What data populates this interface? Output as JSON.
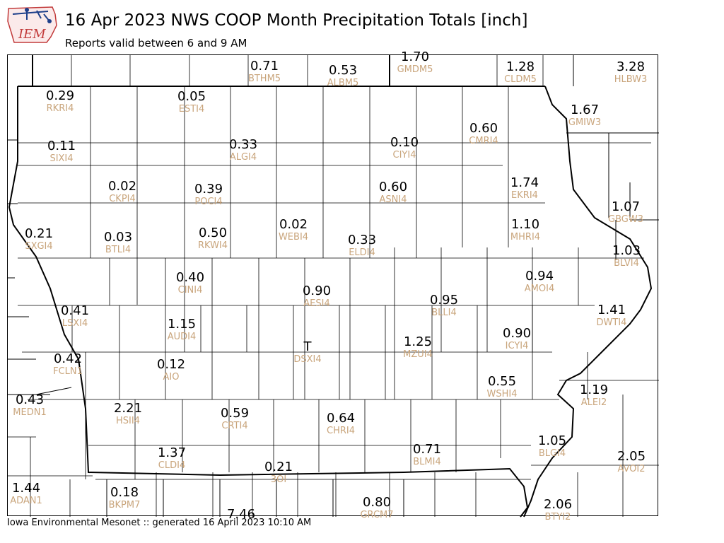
{
  "title": "16 Apr 2023 NWS COOP Month Precipitation Totals [inch]",
  "subtitle": "Reports valid between 6 and 9 AM",
  "footer": "Iowa Environmental Mesonet :: generated 16 April 2023 10:10 AM",
  "logo": {
    "text": "IEM",
    "accent": "#c23b3b",
    "outline": "#1e3f8a"
  },
  "colors": {
    "value": "#000000",
    "station_id": "#c9a57c",
    "border": "#000000"
  },
  "stations": [
    {
      "id": "BTHM5",
      "value": "0.71"
    },
    {
      "id": "ALBM5",
      "value": "0.53"
    },
    {
      "id": "GMDM5",
      "value": "1.70"
    },
    {
      "id": "CLDM5",
      "value": "1.28"
    },
    {
      "id": "HLBW3",
      "value": "3.28"
    },
    {
      "id": "RKRI4",
      "value": "0.29"
    },
    {
      "id": "ESTI4",
      "value": "0.05"
    },
    {
      "id": "GMIW3",
      "value": "1.67"
    },
    {
      "id": "SIXI4",
      "value": "0.11"
    },
    {
      "id": "ALGI4",
      "value": "0.33"
    },
    {
      "id": "CIYI4",
      "value": "0.10"
    },
    {
      "id": "CMRI4",
      "value": "0.60"
    },
    {
      "id": "CKPI4",
      "value": "0.02"
    },
    {
      "id": "POCI4",
      "value": "0.39"
    },
    {
      "id": "ASNI4",
      "value": "0.60"
    },
    {
      "id": "EKRI4",
      "value": "1.74"
    },
    {
      "id": "GBGW3",
      "value": "1.07"
    },
    {
      "id": "SXGI4",
      "value": "0.21"
    },
    {
      "id": "BTLI4",
      "value": "0.03"
    },
    {
      "id": "RKWI4",
      "value": "0.50"
    },
    {
      "id": "WEBI4",
      "value": "0.02"
    },
    {
      "id": "ELDI4",
      "value": "0.33"
    },
    {
      "id": "MHRI4",
      "value": "1.10"
    },
    {
      "id": "BLVI4",
      "value": "1.03"
    },
    {
      "id": "CINI4",
      "value": "0.40"
    },
    {
      "id": "AMOI4",
      "value": "0.94"
    },
    {
      "id": "AESI4",
      "value": "0.90"
    },
    {
      "id": "BLLI4",
      "value": "0.95"
    },
    {
      "id": "LSXI4",
      "value": "0.41"
    },
    {
      "id": "DWTI4",
      "value": "1.41"
    },
    {
      "id": "AUDI4",
      "value": "1.15"
    },
    {
      "id": "ICYI4",
      "value": "0.90"
    },
    {
      "id": "DSXI4",
      "value": "T"
    },
    {
      "id": "MZUI4",
      "value": "1.25"
    },
    {
      "id": "FCLN1",
      "value": "0.42"
    },
    {
      "id": "AIO",
      "value": "0.12"
    },
    {
      "id": "WSHI4",
      "value": "0.55"
    },
    {
      "id": "MEDN1",
      "value": "0.43"
    },
    {
      "id": "ALEI2",
      "value": "1.19"
    },
    {
      "id": "HSII4",
      "value": "2.21"
    },
    {
      "id": "CRTI4",
      "value": "0.59"
    },
    {
      "id": "CHRI4",
      "value": "0.64"
    },
    {
      "id": "BLMI4",
      "value": "0.71"
    },
    {
      "id": "BLGI4",
      "value": "1.05"
    },
    {
      "id": "CLDI4",
      "value": "1.37"
    },
    {
      "id": "3OI",
      "value": "0.21"
    },
    {
      "id": "AVOI2",
      "value": "2.05"
    },
    {
      "id": "ADAN1",
      "value": "1.44"
    },
    {
      "id": "BKPM7",
      "value": "0.18"
    },
    {
      "id": "GRCM7",
      "value": "0.80"
    },
    {
      "id": "BTYI2",
      "value": "2.06"
    },
    {
      "id": "",
      "value": "7.46"
    }
  ]
}
